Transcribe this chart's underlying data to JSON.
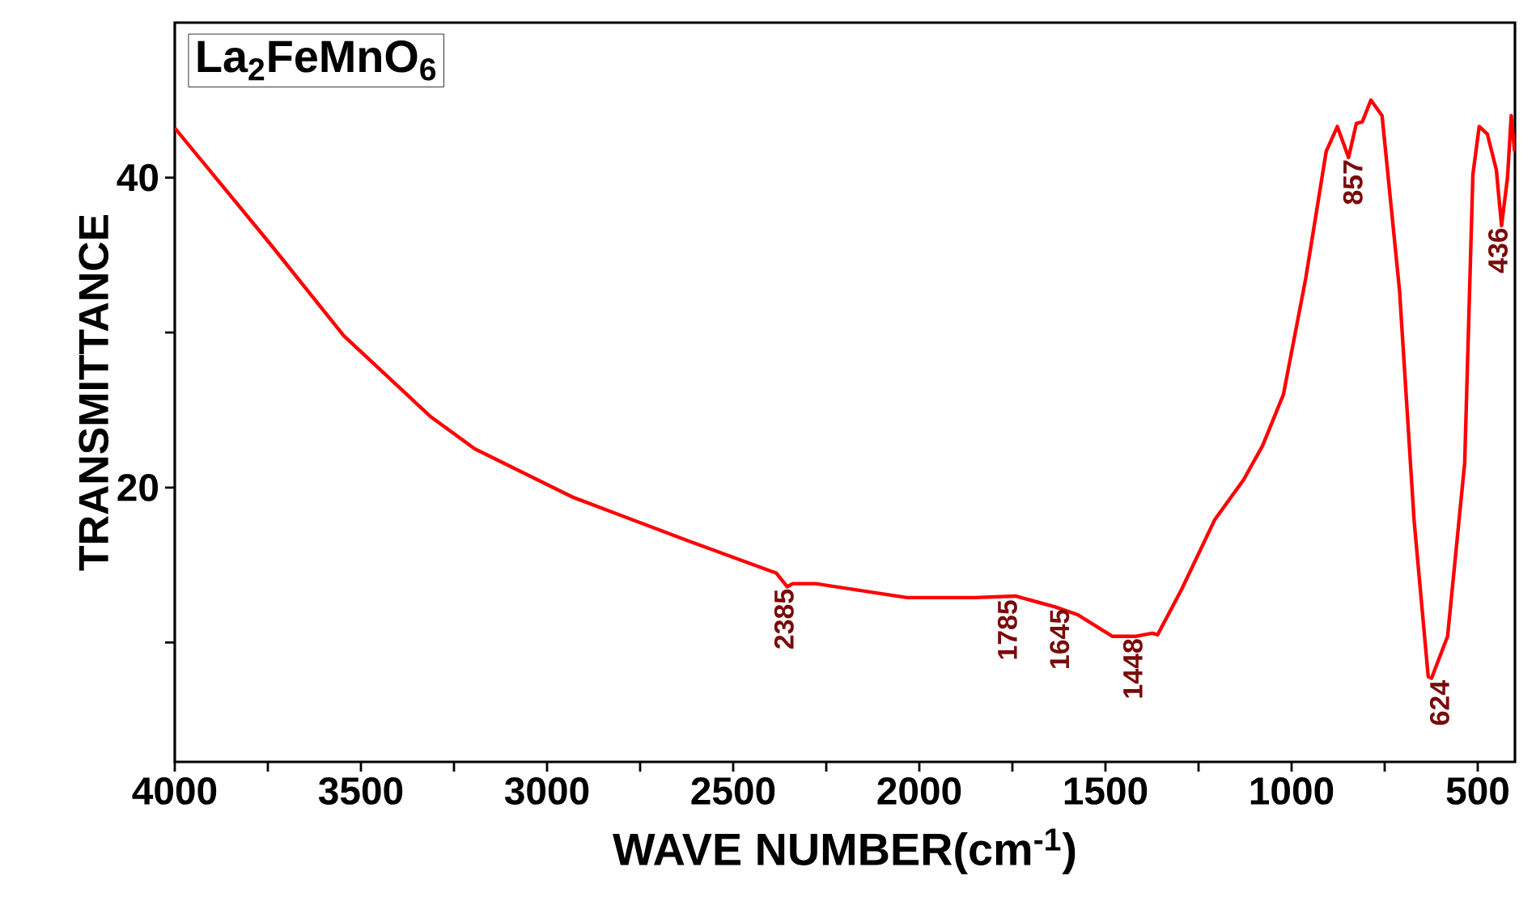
{
  "chart_data": {
    "type": "line",
    "title": "La$_{2}$FeMnO$_{6}$",
    "xlabel": "WAVE NUMBER(cm$^{-1}$)",
    "ylabel": "TRANSMITTANCE",
    "xlim": [
      4000,
      400
    ],
    "ylim": [
      2.3,
      50
    ],
    "xticks": [
      4000,
      {
        "value": 3750,
        "label": null
      },
      3500,
      {
        "value": 3250,
        "label": null
      },
      3000,
      {
        "value": 2750,
        "label": null
      },
      2500,
      {
        "value": 2250,
        "label": null
      },
      2000,
      {
        "value": 1750,
        "label": null
      },
      1500,
      {
        "value": 1250,
        "label": null
      },
      1000,
      {
        "value": 750,
        "label": null
      },
      500
    ],
    "yticks": [
      {
        "value": 10,
        "label": null
      },
      20,
      {
        "value": 30,
        "label": null
      },
      40
    ],
    "grid": false,
    "marker": "none",
    "line_style": "solid",
    "series": [
      {
        "color": "#ff0000",
        "x": [
          4000,
          3897,
          3743,
          3546,
          3314,
          3194,
          2933,
          2625,
          2398,
          2385,
          2355,
          2340,
          2278,
          2033,
          1849,
          1742,
          1635,
          1575,
          1481,
          1420,
          1374,
          1360,
          1296,
          1207,
          1129,
          1078,
          1022,
          962,
          907,
          877,
          847,
          826,
          810,
          787,
          757,
          710,
          671,
          633,
          624,
          581,
          535,
          513,
          496,
          474,
          450,
          436,
          420,
          410,
          401
        ],
        "values": [
          43.2,
          40.2,
          35.7,
          29.8,
          24.6,
          22.5,
          19.4,
          16.6,
          14.6,
          14.5,
          13.6,
          13.8,
          13.8,
          12.9,
          12.9,
          13.0,
          12.3,
          11.8,
          10.4,
          10.4,
          10.6,
          10.5,
          13.4,
          17.9,
          20.5,
          22.7,
          26.0,
          33.5,
          41.7,
          43.3,
          41.3,
          43.5,
          43.6,
          45.0,
          44.0,
          32.7,
          17.9,
          7.8,
          7.7,
          10.4,
          21.6,
          40.2,
          43.3,
          42.8,
          40.5,
          36.9,
          40.0,
          44.0,
          41.7
        ]
      }
    ],
    "annotations": [
      {
        "text": "2385",
        "x": 2385,
        "y": 13.6
      },
      {
        "text": "1785",
        "x": 1785,
        "y": 12.9
      },
      {
        "text": "1645",
        "x": 1645,
        "y": 12.3
      },
      {
        "text": "1448",
        "x": 1448,
        "y": 10.4
      },
      {
        "text": "624",
        "x": 624,
        "y": 7.7
      },
      {
        "text": "857",
        "x": 857,
        "y": 41.3
      },
      {
        "text": "436",
        "x": 436,
        "y": 36.9
      }
    ]
  }
}
